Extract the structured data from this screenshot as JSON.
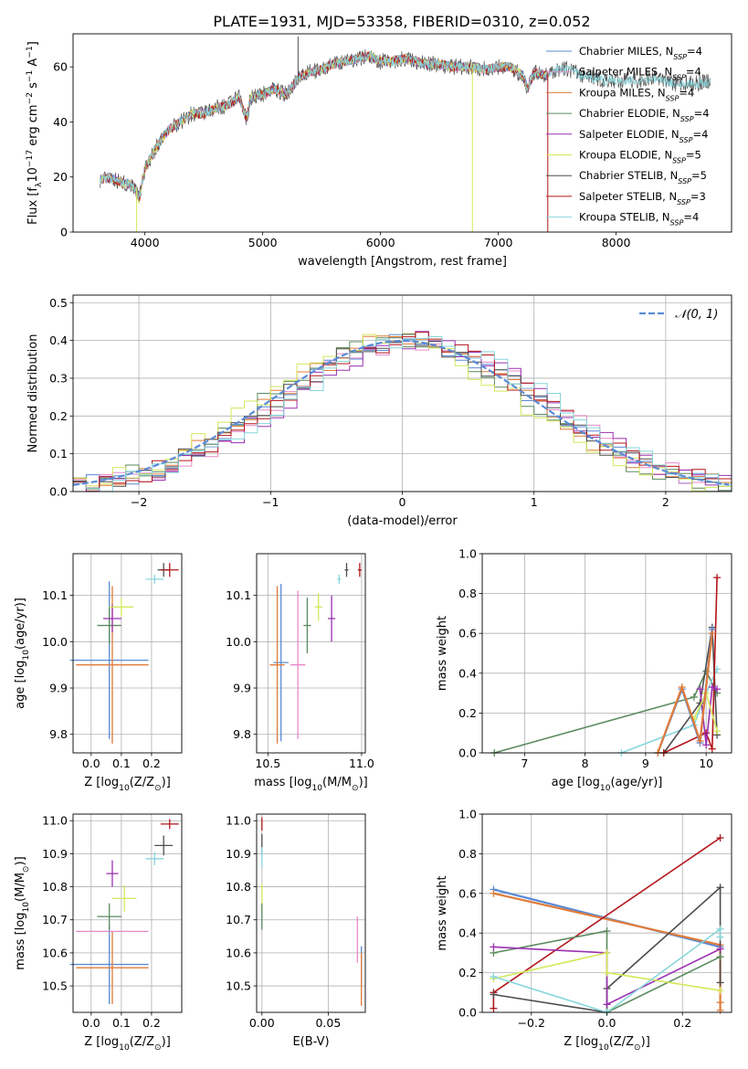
{
  "figure": {
    "title": "PLATE=1931, MJD=53358, FIBERID=0310, z=0.052"
  },
  "series_colors": {
    "Chabrier MILES": "#5b8bd6",
    "Salpeter MILES": "#e58ac8",
    "Kroupa MILES": "#e07b39",
    "Chabrier ELODIE": "#5a8a5f",
    "Salpeter ELODIE": "#9b30b0",
    "Kroupa ELODIE": "#d4e85a",
    "Chabrier STELIB": "#4d4d4d",
    "Salpeter STELIB": "#b3161b",
    "Kroupa STELIB": "#86d6dc"
  },
  "chart_data": [
    {
      "id": "spectrum",
      "type": "line",
      "title": "PLATE=1931, MJD=53358, FIBERID=0310, z=0.052",
      "xlabel": "wavelength [Angstrom, rest frame]",
      "ylabel": "Flux [f$_\\lambda$10$^{-17}$ erg cm$^{-2}$ s$^{-1}$ A$^{-1}$]",
      "ylabel_parts": [
        "Flux [f",
        "λ",
        "10",
        "−17",
        " erg cm",
        "−2",
        " s",
        "−1",
        " A",
        "−1",
        "]"
      ],
      "xlim": [
        3390,
        8980
      ],
      "ylim": [
        0,
        72
      ],
      "xticks": [
        4000,
        5000,
        6000,
        7000,
        8000
      ],
      "yticks": [
        0,
        20,
        40,
        60
      ],
      "grid": false,
      "legend_position": "upper-right",
      "legend": [
        {
          "name": "Chabrier MILES",
          "nssp": "4"
        },
        {
          "name": "Salpeter MILES",
          "nssp": "4"
        },
        {
          "name": "Kroupa MILES",
          "nssp": "4"
        },
        {
          "name": "Chabrier ELODIE",
          "nssp": "4"
        },
        {
          "name": "Salpeter ELODIE",
          "nssp": "4"
        },
        {
          "name": "Kroupa ELODIE",
          "nssp": "5"
        },
        {
          "name": "Chabrier STELIB",
          "nssp": "5"
        },
        {
          "name": "Salpeter STELIB",
          "nssp": "3"
        },
        {
          "name": "Kroupa STELIB",
          "nssp": "4"
        }
      ],
      "continuum": {
        "x": [
          3620,
          3700,
          3800,
          3900,
          3950,
          4000,
          4100,
          4200,
          4300,
          4400,
          4500,
          4600,
          4700,
          4800,
          4860,
          4900,
          5000,
          5100,
          5200,
          5300,
          5400,
          5500,
          5600,
          5700,
          5800,
          5900,
          6000,
          6100,
          6200,
          6300,
          6400,
          6500,
          6600,
          6700,
          6800,
          6900,
          7000,
          7100,
          7200,
          7250,
          7300,
          7400,
          7500,
          7600,
          7700,
          7800,
          7900,
          8000,
          8100,
          8200,
          8300,
          8400,
          8500,
          8600,
          8700,
          8800
        ],
        "y": [
          19,
          20,
          18,
          17,
          12,
          23,
          31,
          37,
          40,
          43,
          43,
          45,
          46,
          49,
          41,
          49,
          50,
          52,
          50,
          56,
          58,
          59,
          61,
          62,
          63,
          64,
          62,
          62,
          63,
          62,
          61,
          61,
          60,
          60,
          60,
          59,
          60,
          60,
          57,
          52,
          58,
          57,
          59,
          59,
          57,
          56,
          55,
          55,
          55,
          55,
          56,
          55,
          54,
          54,
          54,
          55
        ]
      },
      "model_end_wavelength": 7420,
      "spikes": [
        {
          "x": 3930,
          "ymin": 0,
          "ymax": 16,
          "series": "Kroupa ELODIE"
        },
        {
          "x": 5300,
          "ymin": 56,
          "ymax": 71,
          "series": "Chabrier STELIB"
        },
        {
          "x": 6780,
          "ymin": 0,
          "ymax": 60,
          "series": "Kroupa ELODIE"
        },
        {
          "x": 7420,
          "ymin": 0,
          "ymax": 58,
          "series": "Salpeter STELIB"
        }
      ]
    },
    {
      "id": "residual-histogram",
      "type": "histogram",
      "xlabel": "(data-model)/error",
      "ylabel": "Normed distribution",
      "xlim": [
        -2.5,
        2.5
      ],
      "ylim": [
        0,
        0.52
      ],
      "xticks": [
        -2,
        -1,
        0,
        1,
        2
      ],
      "yticks": [
        0.0,
        0.1,
        0.2,
        0.3,
        0.4,
        0.5
      ],
      "grid": true,
      "legend_position": "upper-right",
      "reference_curve": {
        "name": "𝒩(0, 1)",
        "color": "#5b8bd6"
      },
      "bin_width": 0.1
    },
    {
      "id": "z-vs-age",
      "type": "scatter",
      "xlabel": "Z [log$_{10}$(Z/Z$_\\odot$)]",
      "ylabel": "age  [log$_{10}$(age/yr)]",
      "xlim": [
        -0.06,
        0.3
      ],
      "ylim": [
        9.76,
        10.19
      ],
      "xticks": [
        0.0,
        0.1,
        0.2
      ],
      "yticks": [
        9.8,
        9.9,
        10.0,
        10.1
      ],
      "grid": true,
      "points": [
        {
          "series": "Chabrier MILES",
          "x": 0.06,
          "y": 9.96,
          "xerr": 0.13,
          "yerr": 0.17
        },
        {
          "series": "Kroupa MILES",
          "x": 0.07,
          "y": 9.95,
          "xerr": 0.12,
          "yerr": 0.17
        },
        {
          "series": "Chabrier ELODIE",
          "x": 0.06,
          "y": 10.035,
          "xerr": 0.04,
          "yerr": 0.04
        },
        {
          "series": "Salpeter ELODIE",
          "x": 0.07,
          "y": 10.05,
          "xerr": 0.03,
          "yerr": 0.03
        },
        {
          "series": "Kroupa ELODIE",
          "x": 0.1,
          "y": 10.075,
          "xerr": 0.04,
          "yerr": 0.02
        },
        {
          "series": "Kroupa STELIB",
          "x": 0.21,
          "y": 10.135,
          "xerr": 0.03,
          "yerr": 0.01
        },
        {
          "series": "Chabrier STELIB",
          "x": 0.24,
          "y": 10.155,
          "xerr": 0.02,
          "yerr": 0.015
        },
        {
          "series": "Salpeter STELIB",
          "x": 0.26,
          "y": 10.155,
          "xerr": 0.03,
          "yerr": 0.015
        }
      ]
    },
    {
      "id": "mass-vs-age",
      "type": "scatter",
      "xlabel": "mass [log$_{10}$(M/M$_\\odot$)]",
      "ylabel": "",
      "xlim": [
        10.44,
        11.02
      ],
      "ylim": [
        9.76,
        10.19
      ],
      "xticks": [
        10.5,
        11.0
      ],
      "yticks": [
        9.8,
        9.9,
        10.0,
        10.1
      ],
      "grid": true,
      "points": [
        {
          "series": "Chabrier MILES",
          "x": 10.57,
          "y": 9.955,
          "xerr": 0.04,
          "yerr": 0.17
        },
        {
          "series": "Kroupa MILES",
          "x": 10.55,
          "y": 9.95,
          "xerr": 0.04,
          "yerr": 0.17
        },
        {
          "series": "Salpeter MILES",
          "x": 10.66,
          "y": 9.95,
          "xerr": 0.04,
          "yerr": 0.16
        },
        {
          "series": "Chabrier ELODIE",
          "x": 10.71,
          "y": 10.035,
          "xerr": 0.02,
          "yerr": 0.06
        },
        {
          "series": "Salpeter ELODIE",
          "x": 10.84,
          "y": 10.05,
          "xerr": 0.02,
          "yerr": 0.05
        },
        {
          "series": "Kroupa ELODIE",
          "x": 10.77,
          "y": 10.075,
          "xerr": 0.02,
          "yerr": 0.03
        },
        {
          "series": "Kroupa STELIB",
          "x": 10.88,
          "y": 10.135,
          "xerr": 0.01,
          "yerr": 0.01
        },
        {
          "series": "Chabrier STELIB",
          "x": 10.92,
          "y": 10.155,
          "xerr": 0.01,
          "yerr": 0.015
        },
        {
          "series": "Salpeter STELIB",
          "x": 10.99,
          "y": 10.155,
          "xerr": 0.01,
          "yerr": 0.015
        }
      ]
    },
    {
      "id": "age-weights",
      "type": "line",
      "xlabel": "age  [log$_{10}$(age/yr)]",
      "ylabel": "mass weight",
      "xlim": [
        6.3,
        10.42
      ],
      "ylim": [
        0,
        1.0
      ],
      "xticks": [
        7,
        8,
        9,
        10
      ],
      "yticks": [
        0.0,
        0.2,
        0.4,
        0.6,
        0.8,
        1.0
      ],
      "grid": true,
      "series": [
        {
          "name": "Chabrier ELODIE",
          "x": [
            6.5,
            9.8,
            10.0,
            10.18
          ],
          "y": [
            0.0,
            0.28,
            0.41,
            0.3
          ]
        },
        {
          "name": "Kroupa STELIB",
          "x": [
            8.6,
            9.8,
            10.0,
            10.18
          ],
          "y": [
            0.0,
            0.14,
            0.3,
            0.42
          ]
        },
        {
          "name": "Chabrier STELIB",
          "x": [
            9.3,
            9.9,
            10.1,
            10.18
          ],
          "y": [
            0.0,
            0.25,
            0.63,
            0.09
          ]
        },
        {
          "name": "Salpeter STELIB",
          "x": [
            9.3,
            10.0,
            10.1,
            10.18
          ],
          "y": [
            0.0,
            0.1,
            0.02,
            0.88
          ]
        },
        {
          "name": "Salpeter ELODIE",
          "x": [
            9.9,
            10.0,
            10.1,
            10.18
          ],
          "y": [
            0.32,
            0.04,
            0.33,
            0.32
          ]
        },
        {
          "name": "Kroupa ELODIE",
          "x": [
            9.8,
            10.0,
            10.18
          ],
          "y": [
            0.17,
            0.3,
            0.11
          ]
        },
        {
          "name": "Chabrier MILES",
          "x": [
            9.2,
            9.6,
            9.9,
            10.1
          ],
          "y": [
            0.0,
            0.32,
            0.05,
            0.62
          ]
        },
        {
          "name": "Kroupa MILES",
          "x": [
            9.2,
            9.6,
            9.9,
            10.1
          ],
          "y": [
            0.0,
            0.33,
            0.06,
            0.6
          ]
        }
      ]
    },
    {
      "id": "z-vs-mass",
      "type": "scatter",
      "xlabel": "Z [log$_{10}$(Z/Z$_\\odot$)]",
      "ylabel": "mass [log$_{10}$(M/M$_\\odot$)]",
      "xlim": [
        -0.06,
        0.3
      ],
      "ylim": [
        10.42,
        11.02
      ],
      "xticks": [
        0.0,
        0.1,
        0.2
      ],
      "yticks": [
        10.5,
        10.6,
        10.7,
        10.8,
        10.9,
        11.0
      ],
      "grid": true,
      "points": [
        {
          "series": "Chabrier MILES",
          "x": 0.06,
          "y": 10.565,
          "xerr": 0.13,
          "yerr": 0.12
        },
        {
          "series": "Kroupa MILES",
          "x": 0.07,
          "y": 10.555,
          "xerr": 0.12,
          "yerr": 0.11
        },
        {
          "series": "Salpeter MILES",
          "x": 0.07,
          "y": 10.665,
          "xerr": 0.12,
          "yerr": 0.0
        },
        {
          "series": "Chabrier ELODIE",
          "x": 0.06,
          "y": 10.71,
          "xerr": 0.04,
          "yerr": 0.04
        },
        {
          "series": "Salpeter ELODIE",
          "x": 0.07,
          "y": 10.84,
          "xerr": 0.02,
          "yerr": 0.04
        },
        {
          "series": "Kroupa ELODIE",
          "x": 0.11,
          "y": 10.765,
          "xerr": 0.04,
          "yerr": 0.04
        },
        {
          "series": "Kroupa STELIB",
          "x": 0.21,
          "y": 10.885,
          "xerr": 0.03,
          "yerr": 0.02
        },
        {
          "series": "Chabrier STELIB",
          "x": 0.24,
          "y": 10.925,
          "xerr": 0.03,
          "yerr": 0.03
        },
        {
          "series": "Salpeter STELIB",
          "x": 0.26,
          "y": 10.99,
          "xerr": 0.03,
          "yerr": 0.015
        }
      ]
    },
    {
      "id": "ebv-vs-mass",
      "type": "scatter",
      "xlabel": "E(B-V)",
      "ylabel": "",
      "xlim": [
        -0.004,
        0.078
      ],
      "ylim": [
        10.42,
        11.02
      ],
      "xticks": [
        0.0,
        0.05
      ],
      "yticks": [
        10.5,
        10.6,
        10.7,
        10.8,
        10.9,
        11.0
      ],
      "grid": true,
      "points": [
        {
          "series": "Salpeter STELIB",
          "x": 0.0,
          "y": 10.99,
          "xerr": 0.0,
          "yerr": 0.02
        },
        {
          "series": "Chabrier STELIB",
          "x": 0.0,
          "y": 10.93,
          "xerr": 0.0,
          "yerr": 0.03
        },
        {
          "series": "Kroupa STELIB",
          "x": 0.0,
          "y": 10.89,
          "xerr": 0.0,
          "yerr": 0.03
        },
        {
          "series": "Kroupa ELODIE",
          "x": 0.0,
          "y": 10.77,
          "xerr": 0.0,
          "yerr": 0.04
        },
        {
          "series": "Chabrier ELODIE",
          "x": 0.0,
          "y": 10.71,
          "xerr": 0.0,
          "yerr": 0.04
        },
        {
          "series": "Salpeter MILES",
          "x": 0.072,
          "y": 10.64,
          "xerr": 0.0,
          "yerr": 0.07
        },
        {
          "series": "Chabrier MILES",
          "x": 0.075,
          "y": 10.56,
          "xerr": 0.0,
          "yerr": 0.06
        },
        {
          "series": "Kroupa MILES",
          "x": 0.075,
          "y": 10.52,
          "xerr": 0.0,
          "yerr": 0.08
        }
      ]
    },
    {
      "id": "z-weights",
      "type": "line",
      "xlabel": "Z [log$_{10}$(Z/Z$_\\odot$)]",
      "ylabel": "mass weight",
      "xlim": [
        -0.33,
        0.33
      ],
      "ylim": [
        0,
        1.0
      ],
      "xticks": [
        -0.2,
        0.0,
        0.2
      ],
      "yticks": [
        0.0,
        0.2,
        0.4,
        0.6,
        0.8,
        1.0
      ],
      "grid": true,
      "series": [
        {
          "name": "Chabrier MILES",
          "x": [
            -0.3,
            0.3
          ],
          "y": [
            0.62,
            0.33
          ]
        },
        {
          "name": "Kroupa MILES",
          "x": [
            -0.3,
            0.3,
            0.3,
            0.3
          ],
          "y": [
            0.6,
            0.34,
            0.05,
            0.01
          ]
        },
        {
          "name": "Salpeter STELIB",
          "x": [
            -0.3,
            -0.3,
            0.3
          ],
          "y": [
            0.02,
            0.1,
            0.88
          ]
        },
        {
          "name": "Chabrier STELIB",
          "x": [
            -0.3,
            0.0,
            0.0,
            0.3,
            0.3
          ],
          "y": [
            0.09,
            0.0,
            0.12,
            0.63,
            0.15
          ]
        },
        {
          "name": "Chabrier ELODIE",
          "x": [
            -0.3,
            0.0,
            0.0,
            0.3
          ],
          "y": [
            0.3,
            0.41,
            0.0,
            0.28
          ]
        },
        {
          "name": "Salpeter ELODIE",
          "x": [
            -0.3,
            0.0,
            0.0,
            0.3
          ],
          "y": [
            0.33,
            0.3,
            0.04,
            0.32
          ]
        },
        {
          "name": "Kroupa ELODIE",
          "x": [
            -0.3,
            0.0,
            0.0,
            0.3
          ],
          "y": [
            0.17,
            0.3,
            0.2,
            0.11
          ]
        },
        {
          "name": "Kroupa STELIB",
          "x": [
            -0.3,
            0.0,
            0.3,
            0.3
          ],
          "y": [
            0.18,
            0.0,
            0.42,
            0.38
          ]
        }
      ]
    }
  ]
}
